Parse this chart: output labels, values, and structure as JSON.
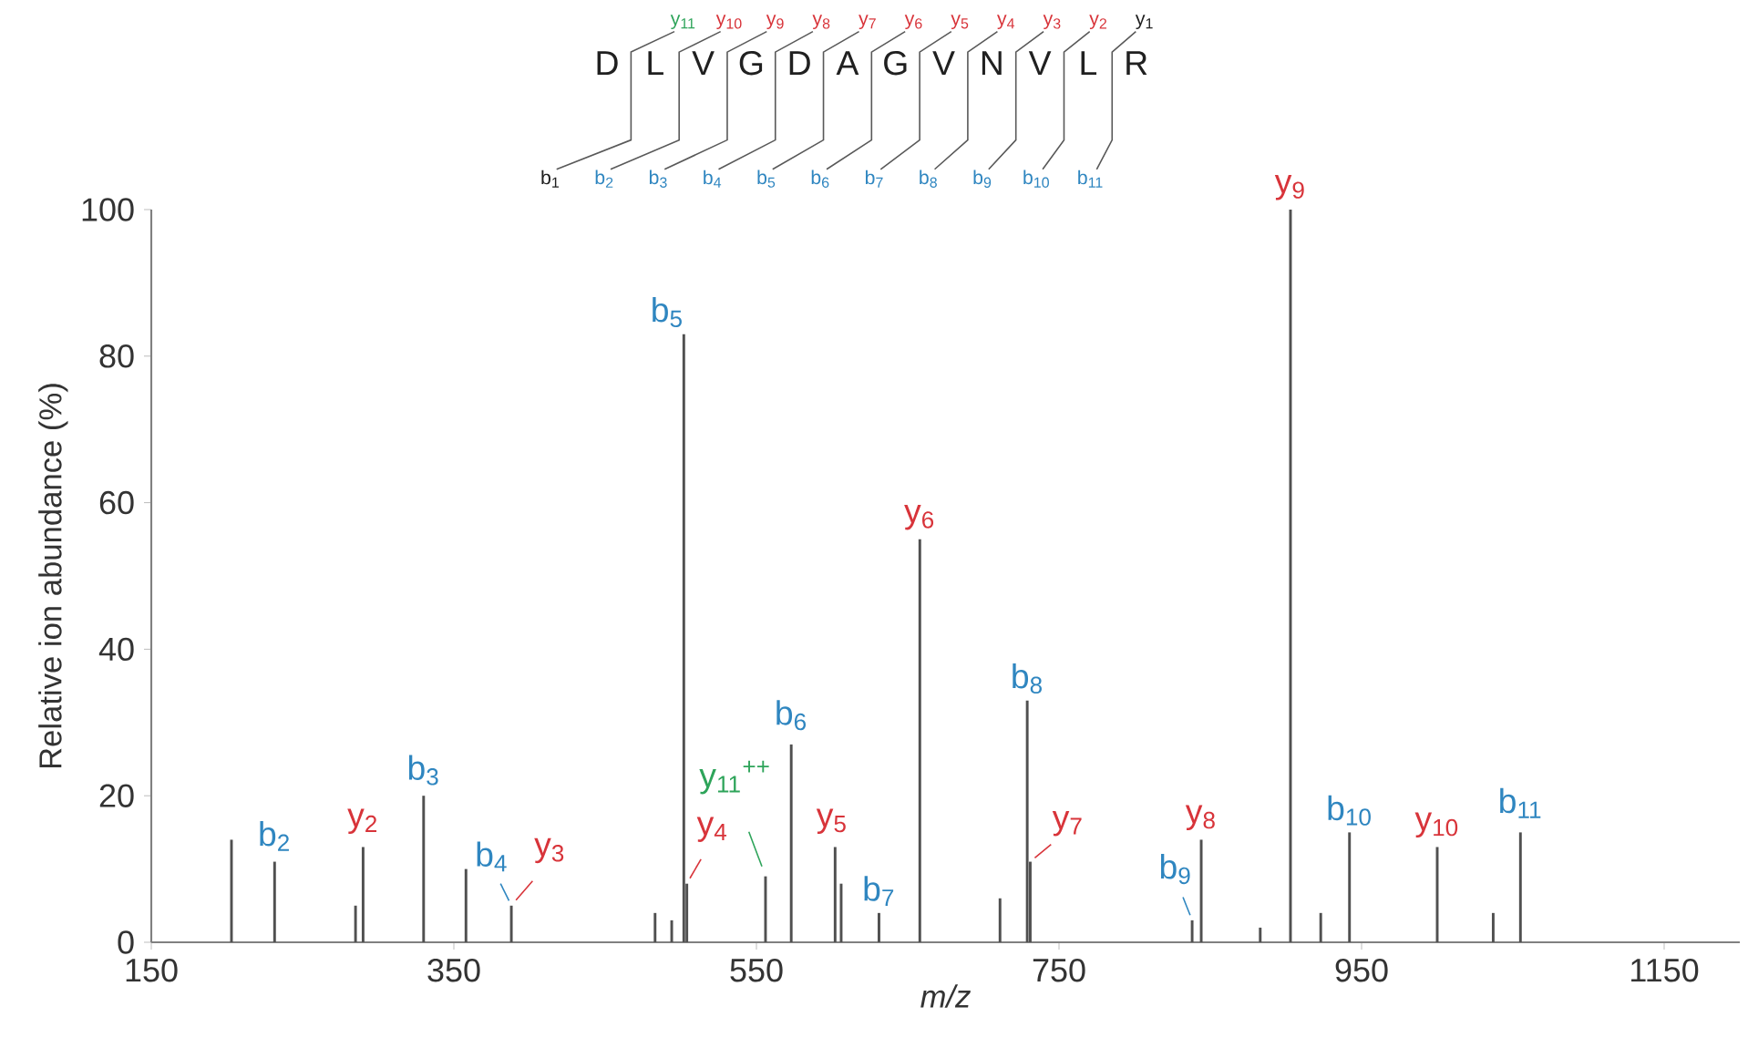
{
  "chart_data": {
    "type": "bar",
    "color": "#505050",
    "x": [
      203,
      231.5,
      285,
      290,
      330,
      358,
      388,
      483,
      494,
      502,
      504,
      556,
      573,
      602,
      606,
      631,
      658,
      711,
      729,
      731,
      838,
      844,
      883,
      903,
      923,
      942,
      1000,
      1037,
      1055
    ],
    "values": [
      14,
      11,
      5,
      13,
      20,
      10,
      5,
      4,
      3,
      83,
      8,
      9,
      27,
      13,
      8,
      4,
      55,
      6,
      33,
      11,
      3,
      14,
      2,
      100,
      4,
      15,
      13,
      4,
      15
    ],
    "xlim": [
      150,
      1200
    ],
    "xticks": [
      150,
      350,
      550,
      750,
      950,
      1150
    ],
    "ylim": [
      0,
      100
    ],
    "yticks": [
      0,
      20,
      40,
      60,
      80,
      100
    ],
    "xlabel": "m/z",
    "ylabel": "Relative ion abundance (%)",
    "annotations": [
      {
        "text": "b$_{2}$",
        "x": 231.5,
        "y": 11
      },
      {
        "text": "y$_{2}$",
        "x": 290,
        "y": 13
      },
      {
        "text": "b$_{3}$",
        "x": 330,
        "y": 20
      },
      {
        "text": "b$_{4}$",
        "x": 388,
        "y": 5
      },
      {
        "text": "y$_{3}$",
        "x": 388,
        "y": 5
      },
      {
        "text": "b$_{5}$",
        "x": 502,
        "y": 83
      },
      {
        "text": "y$_{4}$",
        "x": 504,
        "y": 8
      },
      {
        "text": "y$_{11}$$^{++}$",
        "x": 556,
        "y": 9
      },
      {
        "text": "b$_{6}$",
        "x": 573,
        "y": 27
      },
      {
        "text": "y$_{5}$",
        "x": 602,
        "y": 13
      },
      {
        "text": "b$_{7}$",
        "x": 631,
        "y": 4
      },
      {
        "text": "y$_{6}$",
        "x": 658,
        "y": 55
      },
      {
        "text": "b$_{8}$",
        "x": 729,
        "y": 33
      },
      {
        "text": "y$_{7}$",
        "x": 731,
        "y": 11
      },
      {
        "text": "b$_{9}$",
        "x": 838,
        "y": 3
      },
      {
        "text": "y$_{8}$",
        "x": 844,
        "y": 14
      },
      {
        "text": "y$_{9}$",
        "x": 903,
        "y": 100
      },
      {
        "text": "b$_{10}$",
        "x": 942,
        "y": 15
      },
      {
        "text": "y$_{10}$",
        "x": 1000,
        "y": 13
      },
      {
        "text": "b$_{11}$",
        "x": 1055,
        "y": 15
      },
      "D",
      "L",
      "V",
      "G",
      "D",
      "A",
      "G",
      "V",
      "N",
      "V",
      "L",
      "R",
      "y$_{11}$",
      "y$_{10}$",
      "y$_{9}$",
      "y$_{8}$",
      "y$_{7}$",
      "y$_{6}$",
      "y$_{5}$",
      "y$_{4}$",
      "y$_{3}$",
      "y$_{2}$",
      "y$_{1}$",
      "b$_{1}$",
      "b$_{2}$",
      "b$_{3}$",
      "b$_{4}$",
      "b$_{5}$",
      "b$_{6}$",
      "b$_{7}$",
      "b$_{8}$",
      "b$_{9}$",
      "b$_{10}$",
      "b$_{11}$"
    ]
  }
}
